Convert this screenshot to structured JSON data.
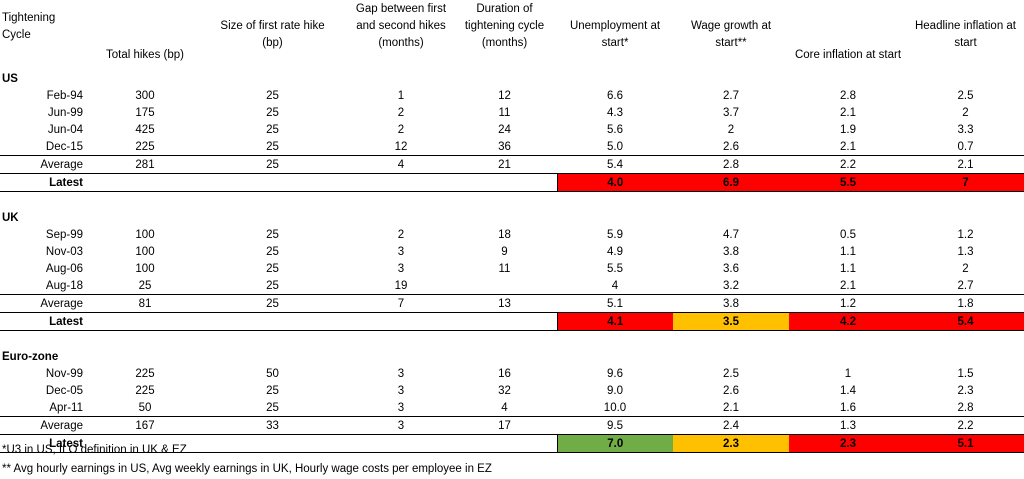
{
  "headers": {
    "cycle": [
      "Tightening",
      "Cycle"
    ],
    "total_hikes": "Total hikes (bp)",
    "first_hike": [
      "Size of first rate hike",
      "(bp)"
    ],
    "gap": [
      "Gap between first",
      "and second hikes",
      "(months)"
    ],
    "duration": [
      "Duration of",
      "tightening cycle",
      "(months)"
    ],
    "unemployment": [
      "Unemployment at",
      "start*"
    ],
    "wage": [
      "Wage growth at",
      "start**"
    ],
    "core": "Core inflation at start",
    "headline": [
      "Headline inflation at",
      "start"
    ]
  },
  "sections": [
    {
      "name": "US",
      "rows": [
        {
          "cycle": "Feb-94",
          "total": "300",
          "first": "25",
          "gap": "1",
          "duration": "12",
          "unemp": "6.6",
          "wage": "2.7",
          "core": "2.8",
          "headline": "2.5"
        },
        {
          "cycle": "Jun-99",
          "total": "175",
          "first": "25",
          "gap": "2",
          "duration": "11",
          "unemp": "4.3",
          "wage": "3.7",
          "core": "2.1",
          "headline": "2"
        },
        {
          "cycle": "Jun-04",
          "total": "425",
          "first": "25",
          "gap": "2",
          "duration": "24",
          "unemp": "5.6",
          "wage": "2",
          "core": "1.9",
          "headline": "3.3"
        },
        {
          "cycle": "Dec-15",
          "total": "225",
          "first": "25",
          "gap": "12",
          "duration": "36",
          "unemp": "5.0",
          "wage": "2.6",
          "core": "2.1",
          "headline": "0.7"
        }
      ],
      "average": {
        "cycle": "Average",
        "total": "281",
        "first": "25",
        "gap": "4",
        "duration": "21",
        "unemp": "5.4",
        "wage": "2.8",
        "core": "2.2",
        "headline": "2.1"
      },
      "latest": {
        "cycle": "Latest",
        "unemp": "4.0",
        "wage": "6.9",
        "core": "5.5",
        "headline": "7",
        "colors": {
          "unemp": "red",
          "wage": "red",
          "core": "red",
          "headline": "red"
        }
      }
    },
    {
      "name": "UK",
      "rows": [
        {
          "cycle": "Sep-99",
          "total": "100",
          "first": "25",
          "gap": "2",
          "duration": "18",
          "unemp": "5.9",
          "wage": "4.7",
          "core": "0.5",
          "headline": "1.2"
        },
        {
          "cycle": "Nov-03",
          "total": "100",
          "first": "25",
          "gap": "3",
          "duration": "9",
          "unemp": "4.9",
          "wage": "3.8",
          "core": "1.1",
          "headline": "1.3"
        },
        {
          "cycle": "Aug-06",
          "total": "100",
          "first": "25",
          "gap": "3",
          "duration": "11",
          "unemp": "5.5",
          "wage": "3.6",
          "core": "1.1",
          "headline": "2"
        },
        {
          "cycle": "Aug-18",
          "total": "25",
          "first": "25",
          "gap": "19",
          "duration": "",
          "unemp": "4",
          "wage": "3.2",
          "core": "2.1",
          "headline": "2.7"
        }
      ],
      "average": {
        "cycle": "Average",
        "total": "81",
        "first": "25",
        "gap": "7",
        "duration": "13",
        "unemp": "5.1",
        "wage": "3.8",
        "core": "1.2",
        "headline": "1.8"
      },
      "latest": {
        "cycle": "Latest",
        "unemp": "4.1",
        "wage": "3.5",
        "core": "4.2",
        "headline": "5.4",
        "colors": {
          "unemp": "red",
          "wage": "amber",
          "core": "red",
          "headline": "red"
        }
      }
    },
    {
      "name": "Euro-zone",
      "rows": [
        {
          "cycle": "Nov-99",
          "total": "225",
          "first": "50",
          "gap": "3",
          "duration": "16",
          "unemp": "9.6",
          "wage": "2.5",
          "core": "1",
          "headline": "1.5"
        },
        {
          "cycle": "Dec-05",
          "total": "225",
          "first": "25",
          "gap": "3",
          "duration": "32",
          "unemp": "9.0",
          "wage": "2.6",
          "core": "1.4",
          "headline": "2.3"
        },
        {
          "cycle": "Apr-11",
          "total": "50",
          "first": "25",
          "gap": "3",
          "duration": "4",
          "unemp": "10.0",
          "wage": "2.1",
          "core": "1.6",
          "headline": "2.8"
        }
      ],
      "average": {
        "cycle": "Average",
        "total": "167",
        "first": "33",
        "gap": "3",
        "duration": "17",
        "unemp": "9.5",
        "wage": "2.4",
        "core": "1.3",
        "headline": "2.2"
      },
      "latest": {
        "cycle": "Latest",
        "unemp": "7.0",
        "wage": "2.3",
        "core": "2.3",
        "headline": "5.1",
        "colors": {
          "unemp": "green",
          "wage": "amber",
          "core": "red",
          "headline": "red"
        }
      }
    }
  ],
  "colors": {
    "red": "#ff0000",
    "amber": "#ffc000",
    "green": "#70ad47"
  },
  "footnotes": [
    "*U3 in US, ILO definition in UK & EZ",
    "** Avg hourly earnings  in US, Avg weekly earnings in UK, Hourly wage costs per employee in EZ"
  ]
}
